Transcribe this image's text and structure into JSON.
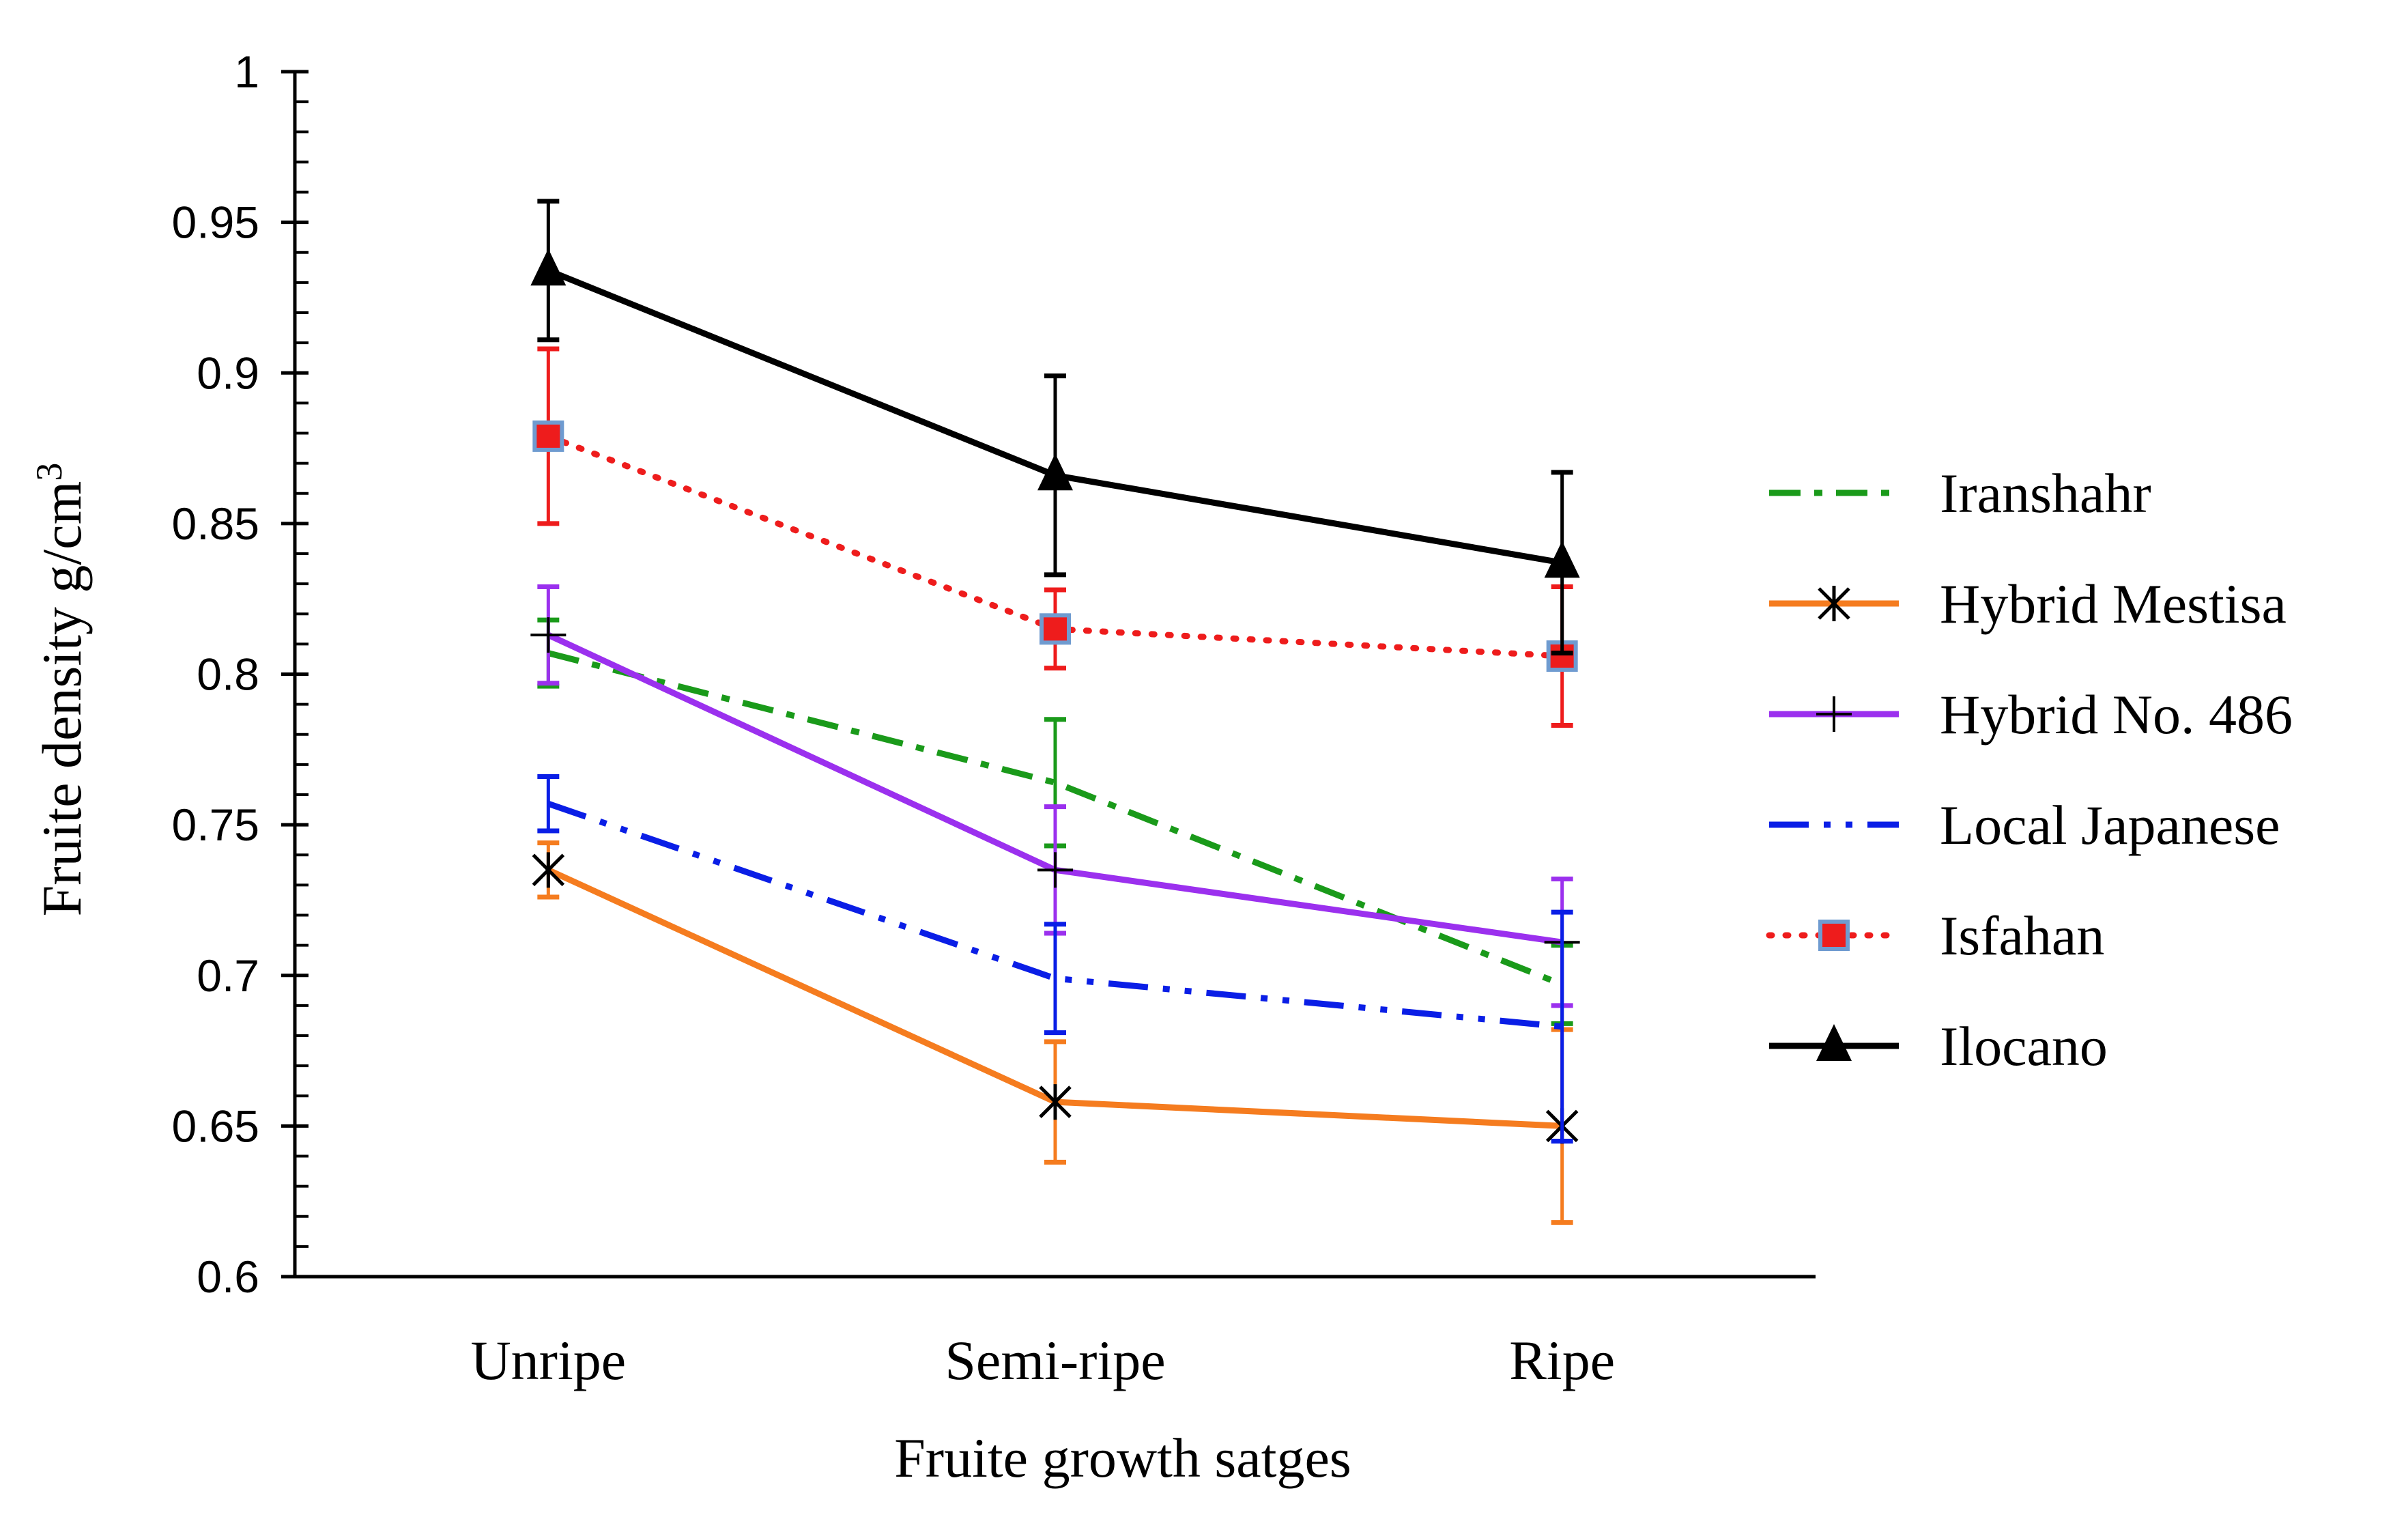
{
  "chart_data": {
    "type": "line",
    "title": "",
    "xlabel": "Fruite growth satges",
    "ylabel": "Fruite density g/cm",
    "ylabel_superscript": "3",
    "categories": [
      "Unripe",
      "Semi-ripe",
      "Ripe"
    ],
    "ylim": [
      0.6,
      1.0
    ],
    "yticks": [
      0.6,
      0.65,
      0.7,
      0.75,
      0.8,
      0.85,
      0.9,
      0.95,
      1.0
    ],
    "ytick_labels": [
      "0.6",
      "0.65",
      "0.7",
      "0.75",
      "0.8",
      "0.85",
      "0.9",
      "0.95",
      "1"
    ],
    "grid": false,
    "legend_position": "right",
    "series": [
      {
        "name": "Iranshahr",
        "values": [
          0.807,
          0.764,
          0.697
        ],
        "errors": [
          0.011,
          0.021,
          0.013
        ],
        "color": "#1a9a1a",
        "dash": "dashdot",
        "marker": "none"
      },
      {
        "name": "Hybrid Mestisa",
        "values": [
          0.735,
          0.658,
          0.65
        ],
        "errors": [
          0.009,
          0.02,
          0.032
        ],
        "color": "#f57c1f",
        "dash": "solid",
        "marker": "asterisk"
      },
      {
        "name": "Hybrid No. 486",
        "values": [
          0.813,
          0.735,
          0.711
        ],
        "errors": [
          0.016,
          0.021,
          0.021
        ],
        "color": "#9b30ee",
        "dash": "solid",
        "marker": "plus"
      },
      {
        "name": "Local Japanese",
        "values": [
          0.757,
          0.699,
          0.683
        ],
        "errors": [
          0.009,
          0.018,
          0.038
        ],
        "color": "#0a1ee6",
        "dash": "dashdotdot",
        "marker": "none"
      },
      {
        "name": "Isfahan",
        "values": [
          0.879,
          0.815,
          0.806
        ],
        "errors": [
          0.029,
          0.013,
          0.023
        ],
        "color": "#ee1c1c",
        "dash": "dotted",
        "marker": "square"
      },
      {
        "name": "Ilocano",
        "values": [
          0.934,
          0.866,
          0.837
        ],
        "errors": [
          0.023,
          0.033,
          0.03
        ],
        "color": "#000000",
        "dash": "solid",
        "marker": "triangle"
      }
    ]
  }
}
